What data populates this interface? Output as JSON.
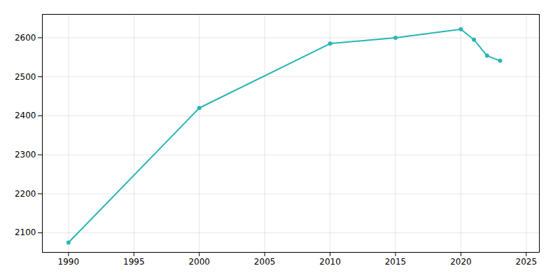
{
  "chart_data": {
    "type": "line",
    "x": [
      1990,
      2000,
      2010,
      2015,
      2020,
      2021,
      2022,
      2023
    ],
    "values": [
      2075,
      2420,
      2585,
      2600,
      2622,
      2595,
      2554,
      2541
    ],
    "color": "#2ab5b5",
    "marker": "circle",
    "xlim": [
      1988,
      2026
    ],
    "ylim": [
      2050,
      2660
    ],
    "xticks": [
      1990,
      1995,
      2000,
      2005,
      2010,
      2015,
      2020,
      2025
    ],
    "yticks": [
      2100,
      2200,
      2300,
      2400,
      2500,
      2600
    ],
    "grid": true
  }
}
